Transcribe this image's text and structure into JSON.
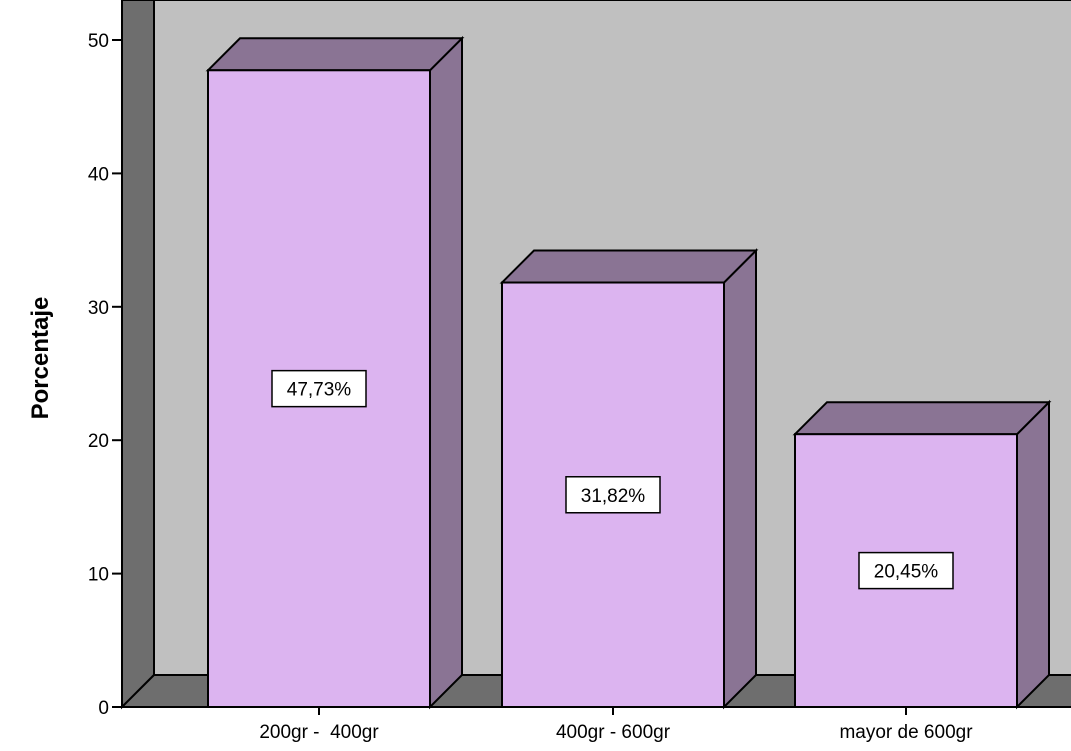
{
  "chart_data": {
    "type": "bar",
    "title": "",
    "xlabel": "",
    "ylabel": "Porcentaje",
    "ylim": [
      0,
      50
    ],
    "yticks": [
      0,
      10,
      20,
      30,
      40,
      50
    ],
    "tick_labels": [
      "0",
      "10",
      "20",
      "30",
      "40",
      "50"
    ],
    "categories": [
      "200gr -  400gr",
      "400gr - 600gr",
      "mayor de 600gr"
    ],
    "values": [
      47.73,
      31.82,
      20.45
    ],
    "data_labels": [
      "47,73%",
      "31,82%",
      "20,45%"
    ],
    "grid": false,
    "style": "3d",
    "colors": {
      "bar_front": "#dcb4f0",
      "bar_side": "#8a7494",
      "wall": "#c0c0c0",
      "floor": "#6e6e6e",
      "left_wall": "#6e6e6e"
    }
  }
}
